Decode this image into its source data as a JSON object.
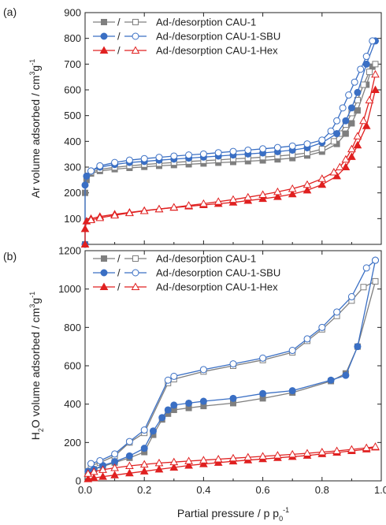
{
  "colors": {
    "cau1": "#7f7f7f",
    "sbu": "#3a6fc4",
    "hex": "#e02020",
    "axis": "#222222"
  },
  "chart_data": [
    {
      "panel_label": "(a)",
      "type": "line",
      "x_range": [
        0.0,
        1.0
      ],
      "ylim": [
        0,
        900
      ],
      "y_ticks": [
        100,
        200,
        300,
        400,
        500,
        600,
        700,
        800,
        900
      ],
      "y_tick_labels": [
        "100",
        "200",
        "300",
        "400",
        "500",
        "600",
        "700",
        "800",
        "900"
      ],
      "x_ticks": [
        0.0,
        0.2,
        0.4,
        0.6,
        0.8,
        1.0
      ],
      "x_tick_labels": [
        "0.0",
        "0.2",
        "0.4",
        "0.6",
        "0.8",
        "1.0"
      ],
      "ylabel": {
        "pre": "Ar volume adsorbed / cm",
        "sup1": "3",
        "mid": "g",
        "sup2": "-1"
      },
      "legend": [
        {
          "text": "Ad-/desorption CAU-1",
          "color_key": "cau1",
          "marker": "square"
        },
        {
          "text": "Ad-/desorption CAU-1-SBU",
          "color_key": "sbu",
          "marker": "circle"
        },
        {
          "text": "Ad-/desorption CAU-1-Hex",
          "color_key": "hex",
          "marker": "triangle"
        }
      ],
      "legend_position": "top-left",
      "series": [
        {
          "name": "Ad-/desorption CAU-1",
          "kind": "adsorption",
          "color_key": "cau1",
          "marker": "square",
          "x": [
            0.0,
            0.0,
            0.005,
            0.02,
            0.05,
            0.1,
            0.15,
            0.2,
            0.25,
            0.3,
            0.35,
            0.4,
            0.45,
            0.5,
            0.55,
            0.6,
            0.65,
            0.7,
            0.75,
            0.8,
            0.85,
            0.88,
            0.9,
            0.92,
            0.95,
            0.97
          ],
          "y": [
            0,
            200,
            250,
            275,
            285,
            292,
            297,
            301,
            305,
            308,
            311,
            314,
            317,
            320,
            323,
            326,
            330,
            335,
            345,
            360,
            390,
            430,
            470,
            520,
            620,
            690
          ]
        },
        {
          "name": "Ad-/desorption CAU-1",
          "kind": "desorption",
          "color_key": "cau1",
          "marker": "square",
          "x": [
            0.98,
            0.96,
            0.94,
            0.92,
            0.9,
            0.88,
            0.86,
            0.84,
            0.8,
            0.75,
            0.7,
            0.65,
            0.6,
            0.55,
            0.5,
            0.45,
            0.4,
            0.35,
            0.3,
            0.25,
            0.2,
            0.15,
            0.1,
            0.05,
            0.02
          ],
          "y": [
            700,
            670,
            620,
            560,
            510,
            465,
            430,
            400,
            370,
            355,
            348,
            343,
            339,
            335,
            332,
            328,
            325,
            322,
            318,
            314,
            310,
            305,
            299,
            291,
            280
          ]
        },
        {
          "name": "Ad-/desorption CAU-1-SBU",
          "kind": "adsorption",
          "color_key": "sbu",
          "marker": "circle",
          "x": [
            0.0,
            0.0,
            0.005,
            0.02,
            0.05,
            0.1,
            0.15,
            0.2,
            0.25,
            0.3,
            0.35,
            0.4,
            0.45,
            0.5,
            0.55,
            0.6,
            0.65,
            0.7,
            0.75,
            0.8,
            0.85,
            0.88,
            0.9,
            0.92,
            0.95,
            0.98
          ],
          "y": [
            0,
            230,
            265,
            285,
            300,
            310,
            318,
            322,
            327,
            331,
            335,
            339,
            343,
            347,
            351,
            355,
            360,
            366,
            375,
            395,
            430,
            480,
            530,
            590,
            700,
            790
          ]
        },
        {
          "name": "Ad-/desorption CAU-1-SBU",
          "kind": "desorption",
          "color_key": "sbu",
          "marker": "circle",
          "x": [
            0.97,
            0.95,
            0.93,
            0.91,
            0.89,
            0.87,
            0.85,
            0.83,
            0.8,
            0.75,
            0.7,
            0.65,
            0.6,
            0.55,
            0.5,
            0.45,
            0.4,
            0.35,
            0.3,
            0.25,
            0.2,
            0.15,
            0.1,
            0.05,
            0.02
          ],
          "y": [
            790,
            730,
            680,
            630,
            580,
            530,
            480,
            440,
            405,
            390,
            382,
            376,
            371,
            366,
            361,
            356,
            351,
            347,
            343,
            338,
            333,
            327,
            318,
            305,
            285
          ]
        },
        {
          "name": "Ad-/desorption CAU-1-Hex",
          "kind": "adsorption",
          "color_key": "hex",
          "marker": "triangle",
          "x": [
            0.0,
            0.0,
            0.005,
            0.02,
            0.05,
            0.1,
            0.15,
            0.2,
            0.25,
            0.3,
            0.35,
            0.4,
            0.45,
            0.5,
            0.55,
            0.6,
            0.65,
            0.7,
            0.75,
            0.8,
            0.85,
            0.88,
            0.9,
            0.92,
            0.95,
            0.98
          ],
          "y": [
            0,
            60,
            90,
            100,
            108,
            117,
            124,
            131,
            137,
            143,
            148,
            153,
            158,
            163,
            170,
            177,
            185,
            195,
            210,
            232,
            265,
            300,
            340,
            385,
            460,
            600
          ]
        },
        {
          "name": "Ad-/desorption CAU-1-Hex",
          "kind": "desorption",
          "color_key": "hex",
          "marker": "triangle",
          "x": [
            0.98,
            0.96,
            0.94,
            0.92,
            0.9,
            0.88,
            0.86,
            0.84,
            0.8,
            0.75,
            0.7,
            0.65,
            0.6,
            0.55,
            0.5,
            0.45,
            0.4,
            0.35,
            0.3,
            0.25,
            0.2,
            0.15,
            0.1,
            0.05,
            0.02
          ],
          "y": [
            660,
            560,
            480,
            420,
            370,
            330,
            300,
            280,
            255,
            232,
            216,
            204,
            193,
            183,
            174,
            166,
            158,
            151,
            144,
            137,
            130,
            122,
            113,
            103,
            95
          ]
        }
      ]
    },
    {
      "panel_label": "(b)",
      "type": "line",
      "x_range": [
        0.0,
        1.0
      ],
      "ylim": [
        0,
        1200
      ],
      "y_ticks": [
        0,
        200,
        400,
        600,
        800,
        1000,
        1200
      ],
      "y_tick_labels": [
        "0",
        "200",
        "400",
        "600",
        "800",
        "1000",
        "1200"
      ],
      "x_ticks": [
        0.0,
        0.2,
        0.4,
        0.6,
        0.8,
        1.0
      ],
      "x_tick_labels": [
        "0.0",
        "0.2",
        "0.4",
        "0.6",
        "0.8",
        "1.0"
      ],
      "ylabel": {
        "pre": "H",
        "sub": "2",
        "post": "O volume adsorbed / cm",
        "sup1": "3",
        "mid": "g",
        "sup2": "-1"
      },
      "xlabel": {
        "pre": "Partial pressure / p p",
        "sub": "0",
        "sup": "-1"
      },
      "legend": [
        {
          "text": "Ad-/desorption CAU-1",
          "color_key": "cau1",
          "marker": "square"
        },
        {
          "text": "Ad-/desorption CAU-1-SBU",
          "color_key": "sbu",
          "marker": "circle"
        },
        {
          "text": "Ad-/desorption CAU-1-Hex",
          "color_key": "hex",
          "marker": "triangle"
        }
      ],
      "legend_position": "top-left",
      "series": [
        {
          "name": "Ad-/desorption CAU-1",
          "kind": "adsorption",
          "color_key": "cau1",
          "marker": "square",
          "x": [
            0.01,
            0.03,
            0.06,
            0.1,
            0.15,
            0.2,
            0.23,
            0.26,
            0.28,
            0.3,
            0.35,
            0.4,
            0.5,
            0.6,
            0.7,
            0.83,
            0.88,
            0.92,
            0.98
          ],
          "y": [
            50,
            60,
            75,
            95,
            120,
            150,
            240,
            320,
            350,
            370,
            380,
            390,
            405,
            430,
            460,
            520,
            560,
            700,
            1040
          ]
        },
        {
          "name": "Ad-/desorption CAU-1",
          "kind": "desorption",
          "color_key": "cau1",
          "marker": "square",
          "x": [
            0.98,
            0.94,
            0.9,
            0.85,
            0.8,
            0.75,
            0.7,
            0.6,
            0.5,
            0.4,
            0.3,
            0.28,
            0.2,
            0.15,
            0.1,
            0.05,
            0.02
          ],
          "y": [
            1040,
            1010,
            940,
            860,
            790,
            730,
            670,
            630,
            600,
            570,
            530,
            510,
            250,
            200,
            130,
            95,
            80
          ]
        },
        {
          "name": "Ad-/desorption CAU-1-SBU",
          "kind": "adsorption",
          "color_key": "sbu",
          "marker": "circle",
          "x": [
            0.01,
            0.03,
            0.06,
            0.1,
            0.15,
            0.2,
            0.23,
            0.26,
            0.28,
            0.3,
            0.35,
            0.4,
            0.5,
            0.6,
            0.7,
            0.83,
            0.88,
            0.92,
            0.98
          ],
          "y": [
            50,
            60,
            80,
            100,
            130,
            170,
            260,
            330,
            370,
            395,
            405,
            415,
            430,
            455,
            470,
            525,
            550,
            700,
            1150
          ]
        },
        {
          "name": "Ad-/desorption CAU-1-SBU",
          "kind": "desorption",
          "color_key": "sbu",
          "marker": "circle",
          "x": [
            0.98,
            0.95,
            0.9,
            0.85,
            0.8,
            0.75,
            0.7,
            0.6,
            0.5,
            0.4,
            0.3,
            0.28,
            0.2,
            0.15,
            0.1,
            0.05,
            0.02
          ],
          "y": [
            1150,
            1110,
            960,
            880,
            800,
            740,
            680,
            640,
            610,
            580,
            545,
            525,
            265,
            205,
            140,
            105,
            90
          ]
        },
        {
          "name": "Ad-/desorption CAU-1-Hex",
          "kind": "adsorption",
          "color_key": "hex",
          "marker": "triangle",
          "x": [
            0.01,
            0.03,
            0.06,
            0.1,
            0.15,
            0.2,
            0.25,
            0.3,
            0.35,
            0.4,
            0.45,
            0.5,
            0.55,
            0.6,
            0.65,
            0.7,
            0.75,
            0.8,
            0.85,
            0.9,
            0.95,
            0.98
          ],
          "y": [
            10,
            15,
            22,
            30,
            40,
            50,
            60,
            70,
            80,
            88,
            95,
            102,
            108,
            114,
            120,
            126,
            132,
            140,
            148,
            156,
            165,
            175
          ]
        },
        {
          "name": "Ad-/desorption CAU-1-Hex",
          "kind": "desorption",
          "color_key": "hex",
          "marker": "triangle",
          "x": [
            0.98,
            0.95,
            0.9,
            0.85,
            0.8,
            0.75,
            0.7,
            0.65,
            0.6,
            0.55,
            0.5,
            0.45,
            0.4,
            0.35,
            0.3,
            0.25,
            0.2,
            0.15,
            0.1,
            0.06,
            0.03,
            0.01
          ],
          "y": [
            178,
            172,
            164,
            156,
            150,
            144,
            138,
            133,
            128,
            123,
            118,
            113,
            108,
            103,
            98,
            93,
            86,
            78,
            68,
            58,
            48,
            38
          ]
        }
      ]
    }
  ]
}
